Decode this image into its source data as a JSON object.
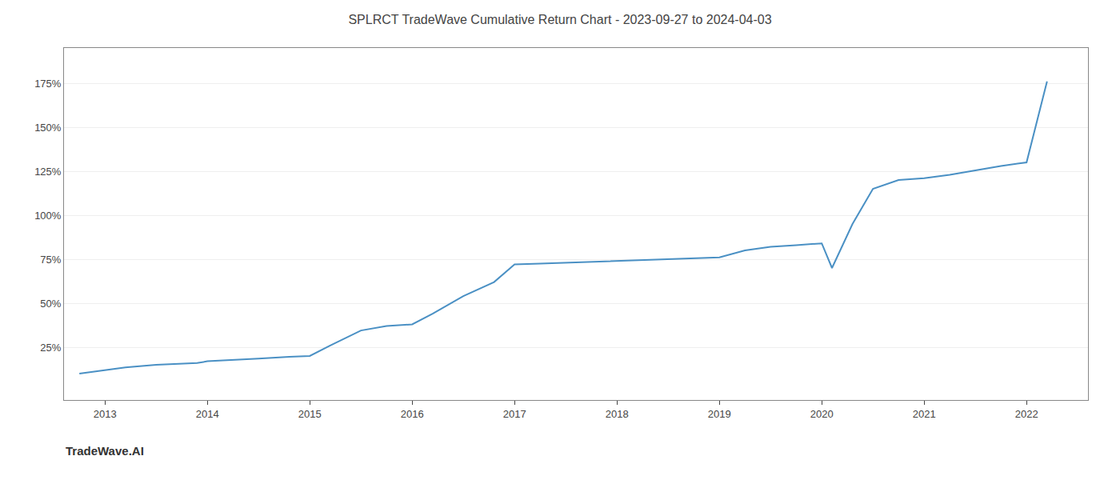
{
  "chart_data": {
    "type": "line",
    "title": "SPLRCT TradeWave Cumulative Return Chart - 2023-09-27 to 2024-04-03",
    "annotations": [
      "TradeWave.AI"
    ],
    "x": [
      2012.75,
      2013.0,
      2013.2,
      2013.5,
      2013.75,
      2013.9,
      2014.0,
      2014.2,
      2014.5,
      2014.8,
      2015.0,
      2015.2,
      2015.5,
      2015.75,
      2016.0,
      2016.2,
      2016.5,
      2016.8,
      2017.0,
      2017.25,
      2017.5,
      2017.75,
      2018.0,
      2018.25,
      2018.5,
      2018.75,
      2019.0,
      2019.25,
      2019.5,
      2019.75,
      2020.0,
      2020.1,
      2020.3,
      2020.5,
      2020.75,
      2021.0,
      2021.25,
      2021.5,
      2021.75,
      2022.0,
      2022.2
    ],
    "values": [
      0.1,
      0.12,
      0.135,
      0.15,
      0.155,
      0.16,
      0.17,
      0.175,
      0.185,
      0.195,
      0.2,
      0.26,
      0.345,
      0.37,
      0.38,
      0.44,
      0.54,
      0.62,
      0.72,
      0.725,
      0.73,
      0.735,
      0.74,
      0.745,
      0.75,
      0.755,
      0.76,
      0.8,
      0.82,
      0.83,
      0.84,
      0.7,
      0.95,
      1.15,
      1.2,
      1.21,
      1.23,
      1.255,
      1.28,
      1.3,
      1.76
    ],
    "color": "#4a90c4",
    "xlim": [
      2012.6,
      2022.6
    ],
    "xticks": [
      2013,
      2014,
      2015,
      2016,
      2017,
      2018,
      2019,
      2020,
      2021,
      2022
    ],
    "ylim": [
      -0.05,
      1.95
    ],
    "yticks": [
      {
        "value": 0.25,
        "label": "25%"
      },
      {
        "value": 0.5,
        "label": "50%"
      },
      {
        "value": 0.75,
        "label": "75%"
      },
      {
        "value": 1.0,
        "label": "100%"
      },
      {
        "value": 1.25,
        "label": "125%"
      },
      {
        "value": 1.5,
        "label": "150%"
      },
      {
        "value": 1.75,
        "label": "175%"
      }
    ],
    "grid": "y"
  }
}
